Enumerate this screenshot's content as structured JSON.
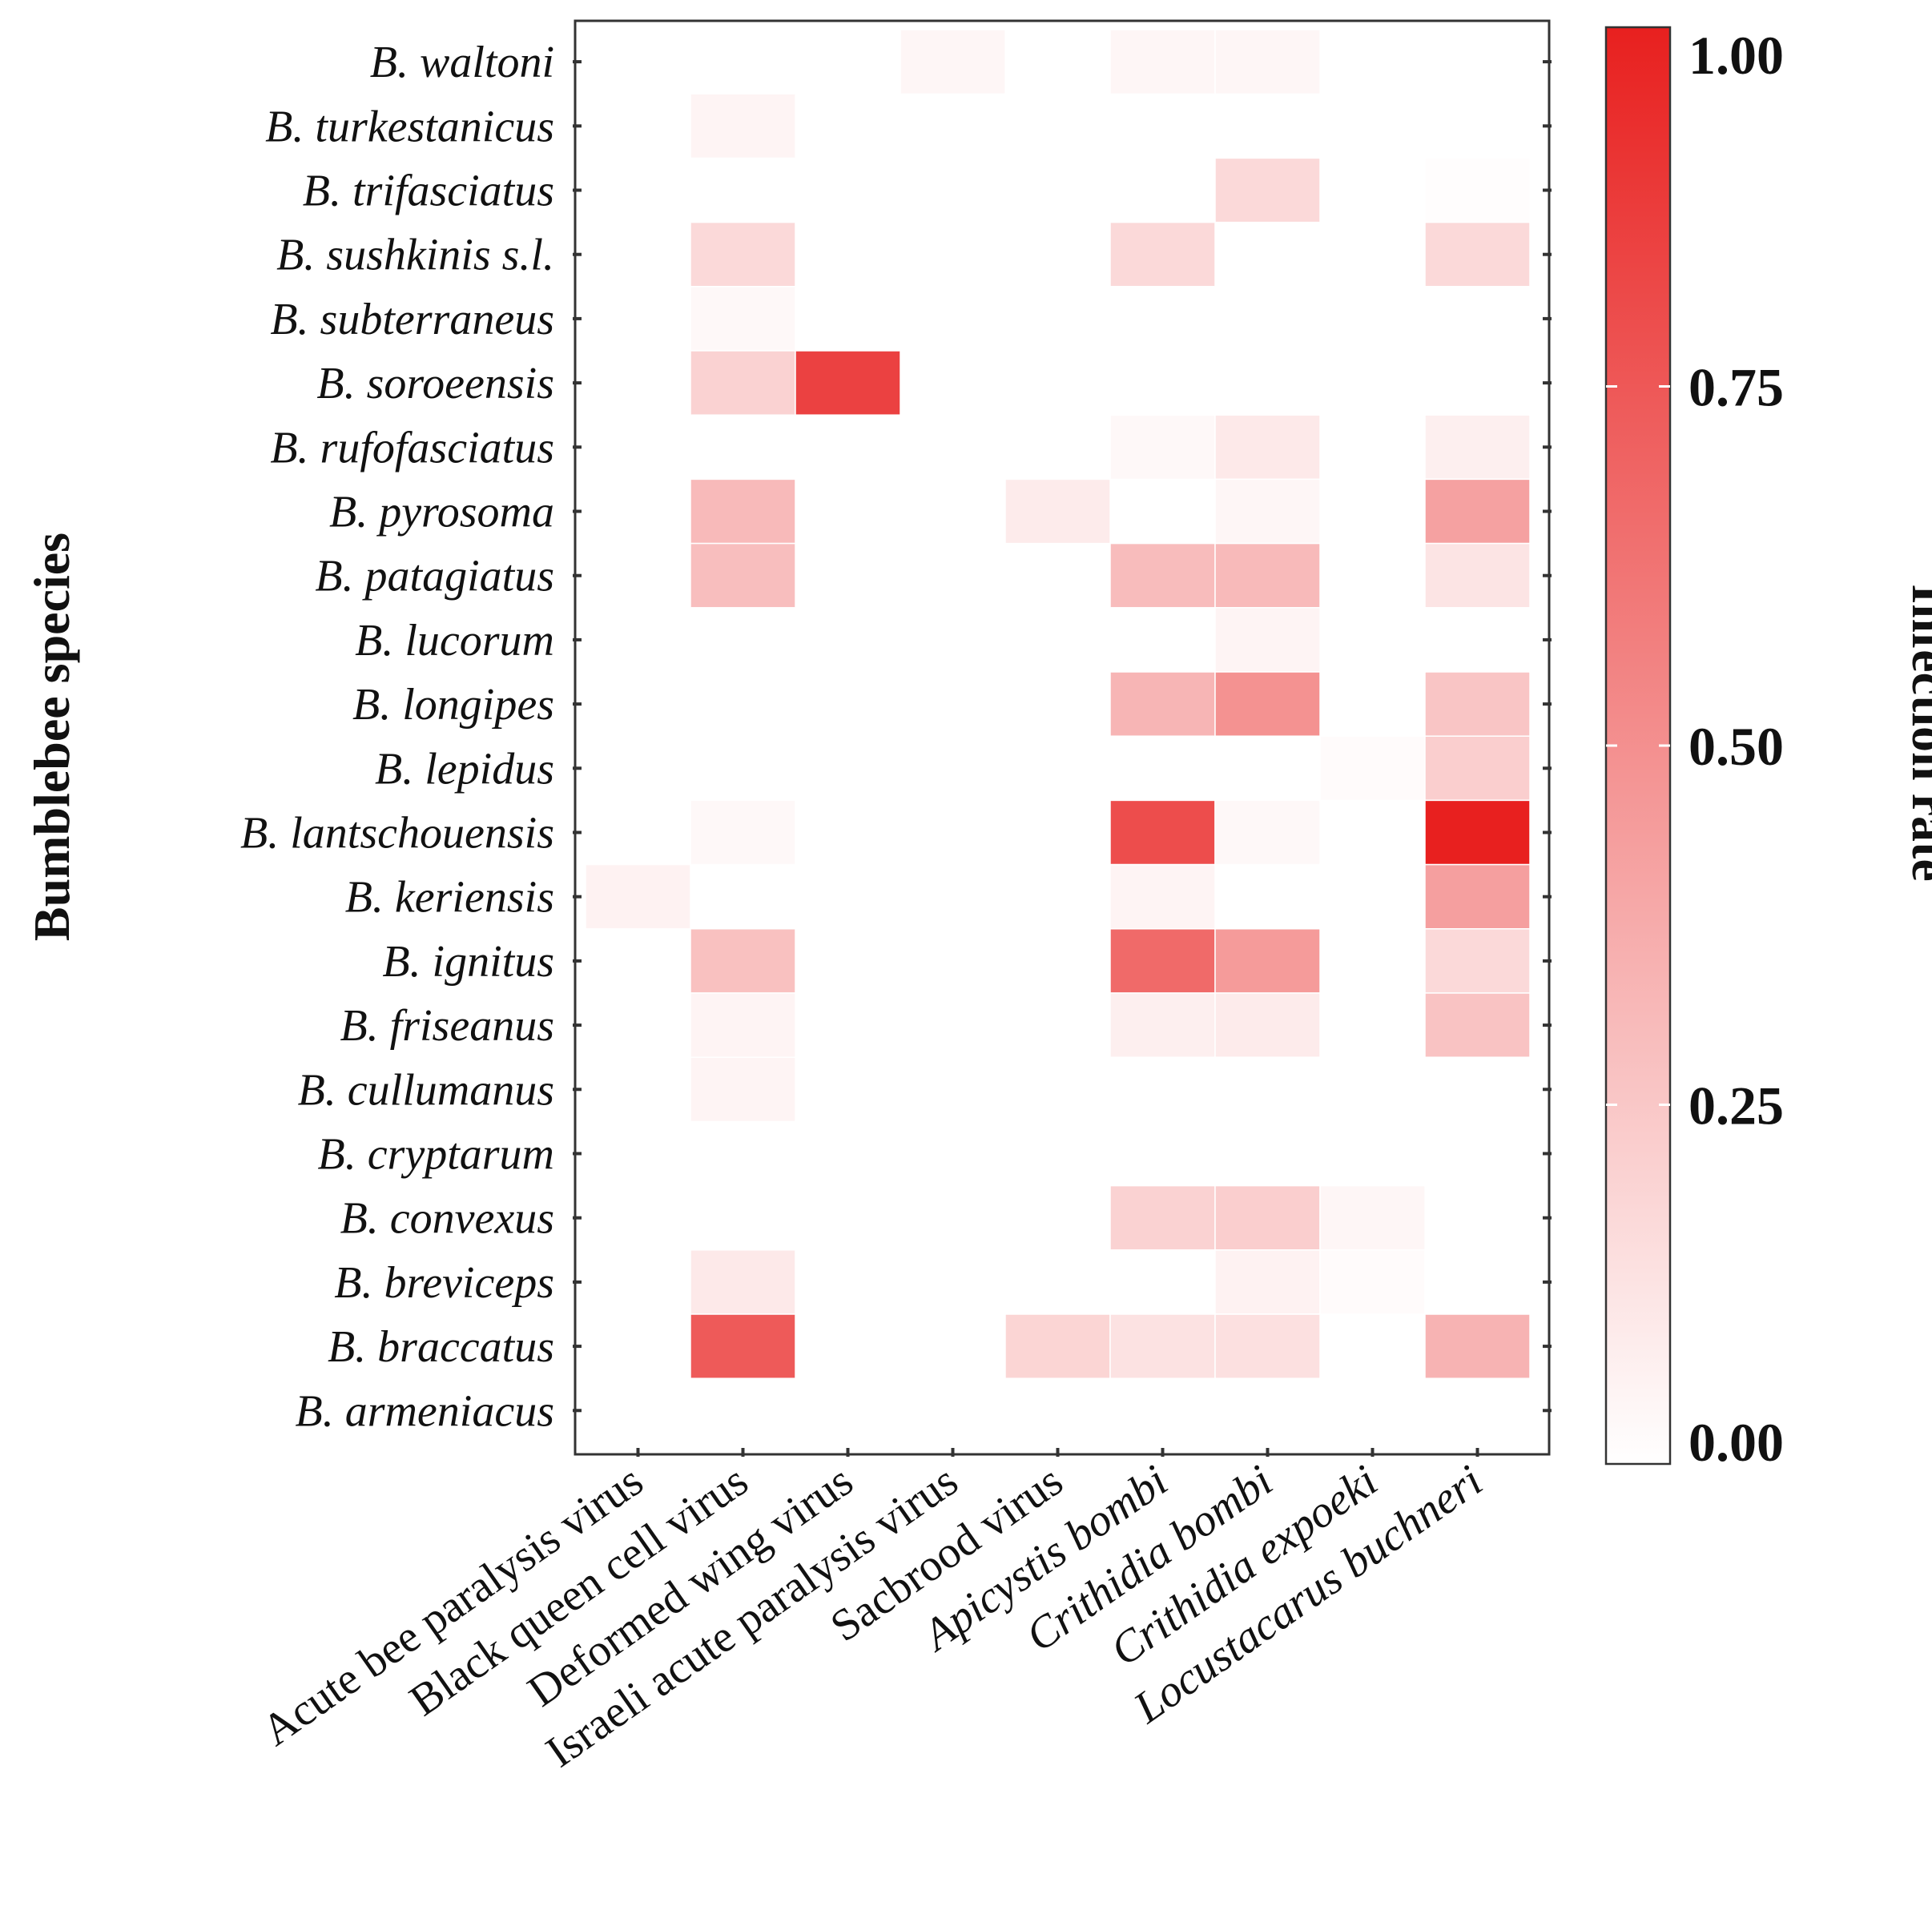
{
  "chart_data": {
    "type": "heatmap",
    "title": "",
    "xlabel": "",
    "ylabel": "Bumblebee species",
    "colorbar_label": "Infection rate",
    "colorbar_range": [
      0,
      1
    ],
    "colorbar_ticks": [
      "0.00",
      "0.25",
      "0.50",
      "0.75",
      "1.00"
    ],
    "color_low": "#ffffff",
    "color_high": "#e8201f",
    "y_categories": [
      "B. waltoni",
      "B. turkestanicus",
      "B. trifasciatus",
      "B. sushkinis s.l.",
      "B. subterraneus",
      "B. soroeensis",
      "B. rufofasciatus",
      "B. pyrosoma",
      "B. patagiatus",
      "B. lucorum",
      "B. longipes",
      "B. lepidus",
      "B. lantschouensis",
      "B. keriensis",
      "B. ignitus",
      "B. friseanus",
      "B. cullumanus",
      "B. cryptarum",
      "B. convexus",
      "B. breviceps",
      "B. braccatus",
      "B. armeniacus"
    ],
    "x_categories": [
      "Acute bee paralysis virus",
      "Black queen cell virus",
      "Deformed wing virus",
      "Israeli acute paralysis virus",
      "Sacbrood virus",
      "Apicystis bombi",
      "Crithidia bombi",
      "Crithidia expoeki",
      "Locustacarus buchneri"
    ],
    "x_italic": [
      false,
      false,
      false,
      false,
      false,
      true,
      true,
      true,
      true
    ],
    "values": [
      [
        0,
        0,
        0,
        0.04,
        0,
        0.04,
        0.04,
        0,
        0
      ],
      [
        0,
        0.05,
        0,
        0,
        0,
        0,
        0,
        0,
        0
      ],
      [
        0,
        0,
        0,
        0,
        0,
        0,
        0.17,
        0,
        0.01
      ],
      [
        0,
        0.17,
        0,
        0,
        0,
        0.17,
        0,
        0,
        0.17
      ],
      [
        0,
        0.03,
        0,
        0,
        0,
        0,
        0,
        0,
        0
      ],
      [
        0,
        0.2,
        0.85,
        0,
        0,
        0,
        0,
        0,
        0
      ],
      [
        0,
        0,
        0,
        0,
        0,
        0.03,
        0.1,
        0,
        0.07
      ],
      [
        0,
        0.31,
        0,
        0,
        0.09,
        0,
        0.04,
        0,
        0.42
      ],
      [
        0,
        0.29,
        0,
        0,
        0,
        0.3,
        0.31,
        0,
        0.12
      ],
      [
        0,
        0,
        0,
        0,
        0,
        0,
        0.05,
        0,
        0
      ],
      [
        0,
        0,
        0,
        0,
        0,
        0.33,
        0.49,
        0,
        0.26
      ],
      [
        0,
        0,
        0,
        0,
        0,
        0,
        0,
        0.02,
        0.22
      ],
      [
        0,
        0.03,
        0,
        0,
        0,
        0.8,
        0.03,
        0,
        1.0
      ],
      [
        0.06,
        0,
        0,
        0,
        0,
        0.05,
        0,
        0,
        0.43
      ],
      [
        0,
        0.28,
        0,
        0,
        0,
        0.67,
        0.45,
        0,
        0.17
      ],
      [
        0,
        0.05,
        0,
        0,
        0,
        0.07,
        0.09,
        0,
        0.27
      ],
      [
        0,
        0.05,
        0,
        0,
        0,
        0,
        0,
        0,
        0
      ],
      [
        0,
        0,
        0,
        0,
        0,
        0,
        0,
        0,
        0
      ],
      [
        0,
        0,
        0,
        0,
        0,
        0.2,
        0.22,
        0.04,
        0
      ],
      [
        0,
        0.1,
        0,
        0,
        0,
        0,
        0.06,
        0.02,
        0
      ],
      [
        0,
        0.74,
        0,
        0,
        0.19,
        0.13,
        0.14,
        0,
        0.34
      ],
      [
        0,
        0,
        0,
        0,
        0,
        0,
        0,
        0,
        0
      ]
    ]
  }
}
